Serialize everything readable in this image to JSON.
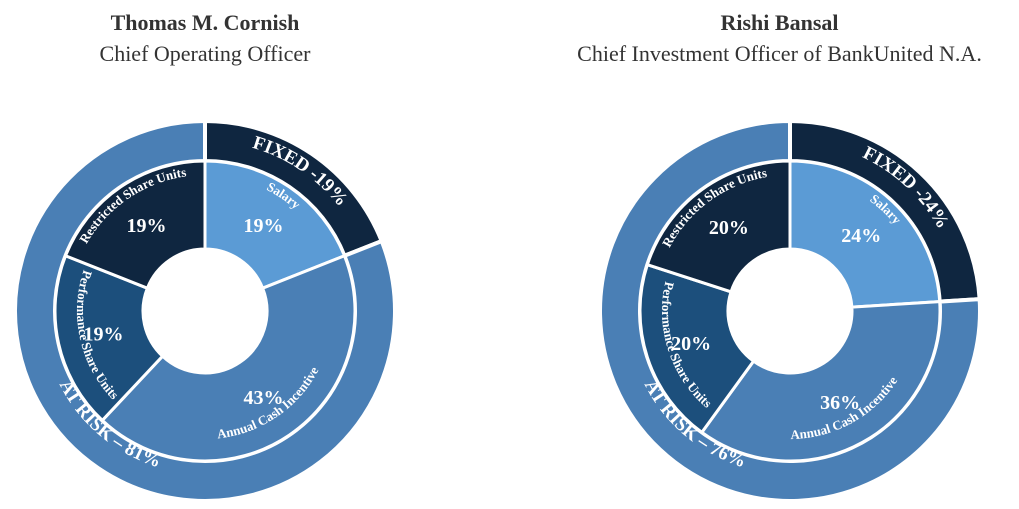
{
  "chart_data": [
    {
      "type": "pie",
      "title": "Thomas M. Cornish",
      "subtitle": "Chief Operating Officer",
      "inner_ring": [
        {
          "label": "Salary",
          "value": 19,
          "value_label": "19%",
          "color": "#5b9bd5"
        },
        {
          "label": "Annual Cash Incentive",
          "value": 43,
          "value_label": "43%",
          "color": "#4a7fb5"
        },
        {
          "label": "Performance Share Units",
          "value": 19,
          "value_label": "19%",
          "color": "#1c4f7c"
        },
        {
          "label": "Restricted Share Units",
          "value": 19,
          "value_label": "19%",
          "color": "#0f2640"
        }
      ],
      "outer_ring": [
        {
          "label": "FIXED -19%",
          "value": 19,
          "color": "#0f2640"
        },
        {
          "label": "AT RISK – 81%",
          "value": 81,
          "color": "#4a7fb5"
        }
      ]
    },
    {
      "type": "pie",
      "title": "Rishi Bansal",
      "subtitle": "Chief Investment Officer of BankUnited N.A.",
      "inner_ring": [
        {
          "label": "Salary",
          "value": 24,
          "value_label": "24%",
          "color": "#5b9bd5"
        },
        {
          "label": "Annual Cash Incentive",
          "value": 36,
          "value_label": "36%",
          "color": "#4a7fb5"
        },
        {
          "label": "Performance Share Units",
          "value": 20,
          "value_label": "20%",
          "color": "#1c4f7c"
        },
        {
          "label": "Restricted Share Units",
          "value": 20,
          "value_label": "20%",
          "color": "#0f2640"
        }
      ],
      "outer_ring": [
        {
          "label": "FIXED -24%",
          "value": 24,
          "color": "#0f2640"
        },
        {
          "label": "AT RISK – 76%",
          "value": 76,
          "color": "#4a7fb5"
        }
      ]
    }
  ]
}
